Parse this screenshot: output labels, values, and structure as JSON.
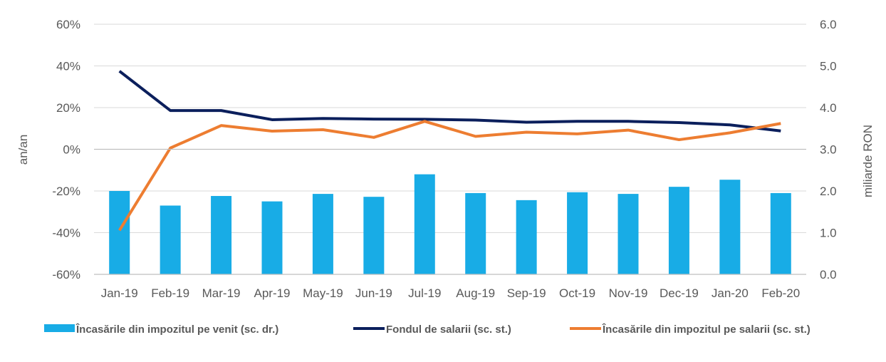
{
  "chart_data": {
    "type": "bar",
    "categories": [
      "Jan-19",
      "Feb-19",
      "Mar-19",
      "Apr-19",
      "May-19",
      "Jun-19",
      "Jul-19",
      "Aug-19",
      "Sep-19",
      "Oct-19",
      "Nov-19",
      "Dec-19",
      "Jan-20",
      "Feb-20"
    ],
    "left_axis": {
      "label": "an/an",
      "range": [
        -60,
        60
      ],
      "ticks": [
        "-60%",
        "-40%",
        "-20%",
        "0%",
        "20%",
        "40%",
        "60%"
      ],
      "tick_values": [
        -60,
        -40,
        -20,
        0,
        20,
        40,
        60
      ]
    },
    "right_axis": {
      "label": "miliarde RON",
      "range": [
        0.0,
        6.0
      ],
      "ticks": [
        "0.0",
        "1.0",
        "2.0",
        "3.0",
        "4.0",
        "5.0",
        "6.0"
      ],
      "tick_values": [
        0,
        1,
        2,
        3,
        4,
        5,
        6
      ]
    },
    "grid": "horizontal",
    "legend_position": "bottom",
    "series": [
      {
        "name": "Încasările din impozitul pe venit (sc. dr.)",
        "type": "bar",
        "axis": "right",
        "color": "#18ACE6",
        "values": [
          2.0,
          1.65,
          1.88,
          1.75,
          1.93,
          1.86,
          2.4,
          1.95,
          1.78,
          1.97,
          1.93,
          2.1,
          2.27,
          1.95
        ]
      },
      {
        "name": "Fondul de salarii (sc. st.)",
        "type": "line",
        "axis": "left",
        "color": "#0B1F5C",
        "values": [
          37.5,
          18.6,
          18.6,
          14.2,
          14.8,
          14.5,
          14.4,
          14.0,
          13.0,
          13.4,
          13.4,
          12.8,
          11.7,
          8.8
        ]
      },
      {
        "name": "Încasările din impozitul pe salarii (sc. st.)",
        "type": "line",
        "axis": "left",
        "color": "#ED7D31",
        "values": [
          -38.9,
          0.6,
          11.4,
          8.7,
          9.4,
          5.7,
          13.4,
          6.2,
          8.2,
          7.4,
          9.2,
          4.6,
          7.9,
          12.4
        ]
      }
    ]
  }
}
